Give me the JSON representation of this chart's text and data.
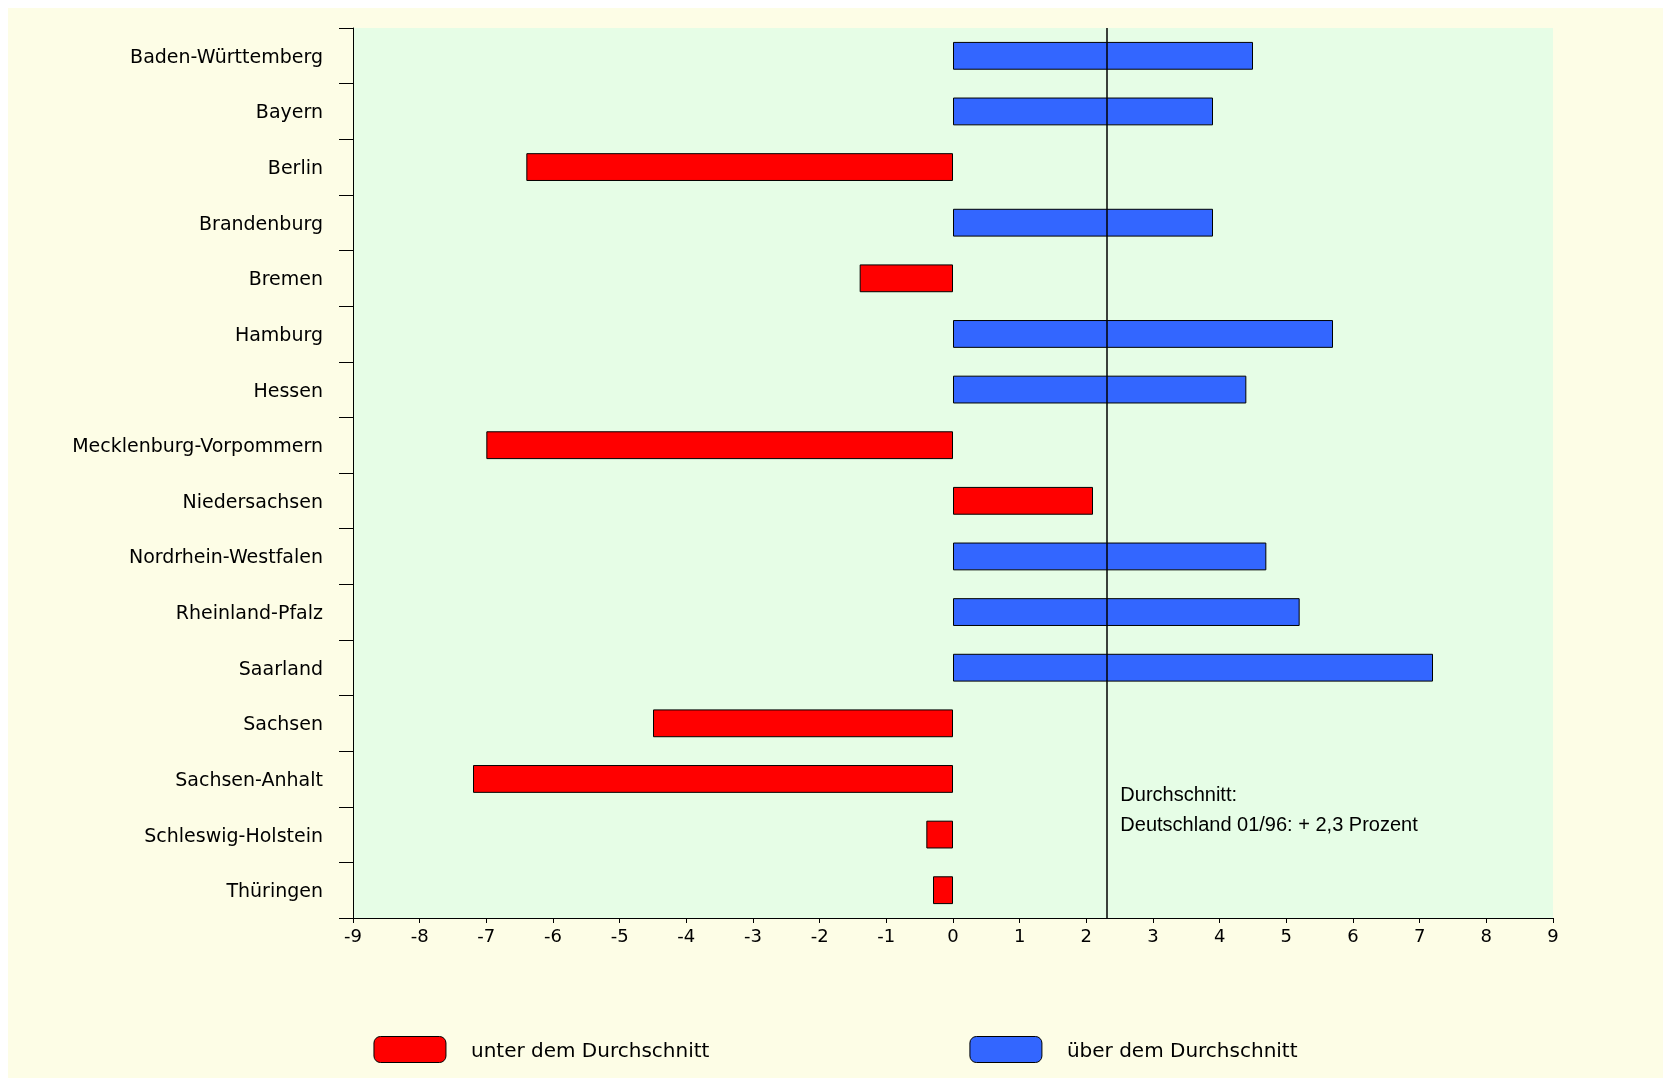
{
  "chart_data": {
    "type": "bar",
    "orientation": "horizontal",
    "stacked": true,
    "categories": [
      "Baden-Württemberg",
      "Bayern",
      "Berlin",
      "Brandenburg",
      "Bremen",
      "Hamburg",
      "Hessen",
      "Mecklenburg-Vorpommern",
      "Niedersachsen",
      "Nordrhein-Westfalen",
      "Rheinland-Pfalz",
      "Saarland",
      "Sachsen",
      "Sachsen-Anhalt",
      "Schleswig-Holstein",
      "Thüringen"
    ],
    "series": [
      {
        "name": "unter dem Durchschnitt",
        "color": "#ff0000",
        "values": [
          null,
          null,
          -6.4,
          null,
          -1.4,
          null,
          null,
          -7.0,
          2.1,
          null,
          null,
          null,
          -4.5,
          -7.2,
          -0.4,
          -0.3
        ]
      },
      {
        "name": "über dem Durchschnitt",
        "color": "#3366ff",
        "values": [
          4.5,
          3.9,
          null,
          3.9,
          null,
          5.7,
          4.4,
          null,
          null,
          4.7,
          5.2,
          7.2,
          null,
          null,
          null,
          null
        ]
      }
    ],
    "xlim": [
      -9,
      9
    ],
    "xticks": [
      -9,
      -8,
      -7,
      -6,
      -5,
      -4,
      -3,
      -2,
      -1,
      0,
      1,
      2,
      3,
      4,
      5,
      6,
      7,
      8,
      9
    ],
    "ref_lines": [
      {
        "axis": "x",
        "value": 2.3,
        "label": "Durchschnitt:\nDeutschland 01/96: + 2,3 Prozent",
        "color": "#000000"
      }
    ],
    "grid": false,
    "legend": "bottom"
  }
}
